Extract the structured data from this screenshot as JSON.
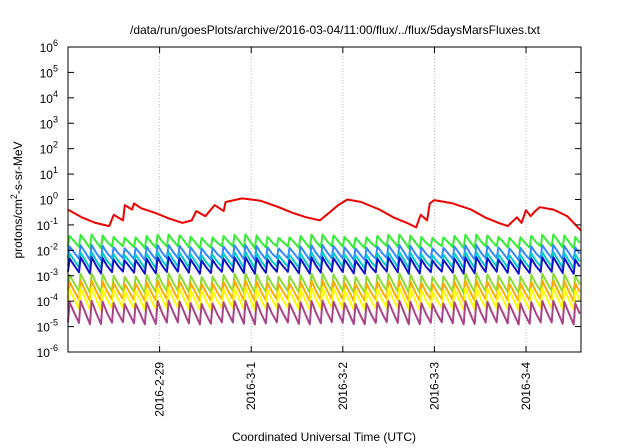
{
  "chart_data": {
    "type": "line",
    "title": "/data/run/goesPlots/archive/2016-03-04/11:00/flux/../flux/5daysMarsFluxes.txt",
    "xlabel": "Coordinated Universal Time (UTC)",
    "ylabel_parts": [
      "protons/cm",
      "2",
      "-s-sr-MeV"
    ],
    "yscale": "log",
    "ylim": [
      1e-06,
      1000000.0
    ],
    "y_ticks": [
      {
        "base": "10",
        "exp": "-6"
      },
      {
        "base": "10",
        "exp": "-5"
      },
      {
        "base": "10",
        "exp": "-4"
      },
      {
        "base": "10",
        "exp": "-3"
      },
      {
        "base": "10",
        "exp": "-2"
      },
      {
        "base": "10",
        "exp": "-1"
      },
      {
        "base": "10",
        "exp": "0"
      },
      {
        "base": "10",
        "exp": "1"
      },
      {
        "base": "10",
        "exp": "2"
      },
      {
        "base": "10",
        "exp": "3"
      },
      {
        "base": "10",
        "exp": "4"
      },
      {
        "base": "10",
        "exp": "5"
      },
      {
        "base": "10",
        "exp": "6"
      }
    ],
    "xlim_days": [
      0,
      5.6
    ],
    "x_ticks": [
      {
        "label": "2016-2-29",
        "day": 1.0
      },
      {
        "label": "2016-3-1",
        "day": 2.0
      },
      {
        "label": "2016-3-2",
        "day": 3.0
      },
      {
        "label": "2016-3-3",
        "day": 4.0
      },
      {
        "label": "2016-3-4",
        "day": 5.0
      }
    ],
    "grid": true,
    "series": [
      {
        "color": "#ee0000",
        "points": [
          [
            0.0,
            0.4
          ],
          [
            0.15,
            0.2
          ],
          [
            0.3,
            0.12
          ],
          [
            0.45,
            0.09
          ],
          [
            0.5,
            0.25
          ],
          [
            0.6,
            0.15
          ],
          [
            0.62,
            0.6
          ],
          [
            0.7,
            0.4
          ],
          [
            0.72,
            0.7
          ],
          [
            0.8,
            0.45
          ],
          [
            0.95,
            0.3
          ],
          [
            1.1,
            0.18
          ],
          [
            1.25,
            0.12
          ],
          [
            1.35,
            0.15
          ],
          [
            1.4,
            0.35
          ],
          [
            1.5,
            0.22
          ],
          [
            1.6,
            0.6
          ],
          [
            1.7,
            0.35
          ],
          [
            1.72,
            0.8
          ],
          [
            1.9,
            1.1
          ],
          [
            2.1,
            0.9
          ],
          [
            2.3,
            0.5
          ],
          [
            2.45,
            0.3
          ],
          [
            2.6,
            0.2
          ],
          [
            2.75,
            0.15
          ],
          [
            2.85,
            0.3
          ],
          [
            2.95,
            0.6
          ],
          [
            3.05,
            1.0
          ],
          [
            3.2,
            0.8
          ],
          [
            3.4,
            0.4
          ],
          [
            3.55,
            0.2
          ],
          [
            3.7,
            0.12
          ],
          [
            3.8,
            0.08
          ],
          [
            3.85,
            0.25
          ],
          [
            3.92,
            0.15
          ],
          [
            3.95,
            0.7
          ],
          [
            4.0,
            0.95
          ],
          [
            4.2,
            0.7
          ],
          [
            4.4,
            0.4
          ],
          [
            4.55,
            0.2
          ],
          [
            4.7,
            0.12
          ],
          [
            4.8,
            0.09
          ],
          [
            4.9,
            0.2
          ],
          [
            4.95,
            0.12
          ],
          [
            5.0,
            0.38
          ],
          [
            5.05,
            0.22
          ],
          [
            5.1,
            0.35
          ],
          [
            5.15,
            0.5
          ],
          [
            5.3,
            0.4
          ],
          [
            5.45,
            0.22
          ],
          [
            5.6,
            0.06
          ]
        ]
      },
      {
        "color": "#33ee33",
        "base": 0.022,
        "amp": 0.4,
        "period": 0.12
      },
      {
        "color": "#3388ff",
        "base": 0.008,
        "amp": 0.45,
        "period": 0.12
      },
      {
        "color": "#00cccc",
        "base": 0.004,
        "amp": 0.5,
        "period": 0.12
      },
      {
        "color": "#1111cc",
        "base": 0.0025,
        "amp": 0.5,
        "period": 0.12
      },
      {
        "color": "#88dd33",
        "base": 0.0005,
        "amp": 0.6,
        "period": 0.12
      },
      {
        "color": "#ffaa00",
        "base": 0.00025,
        "amp": 0.65,
        "period": 0.12
      },
      {
        "color": "#ffff00",
        "base": 0.00012,
        "amp": 0.7,
        "period": 0.12
      },
      {
        "color": "#aa4488",
        "base": 3.5e-05,
        "amp": 0.75,
        "period": 0.12
      }
    ]
  }
}
